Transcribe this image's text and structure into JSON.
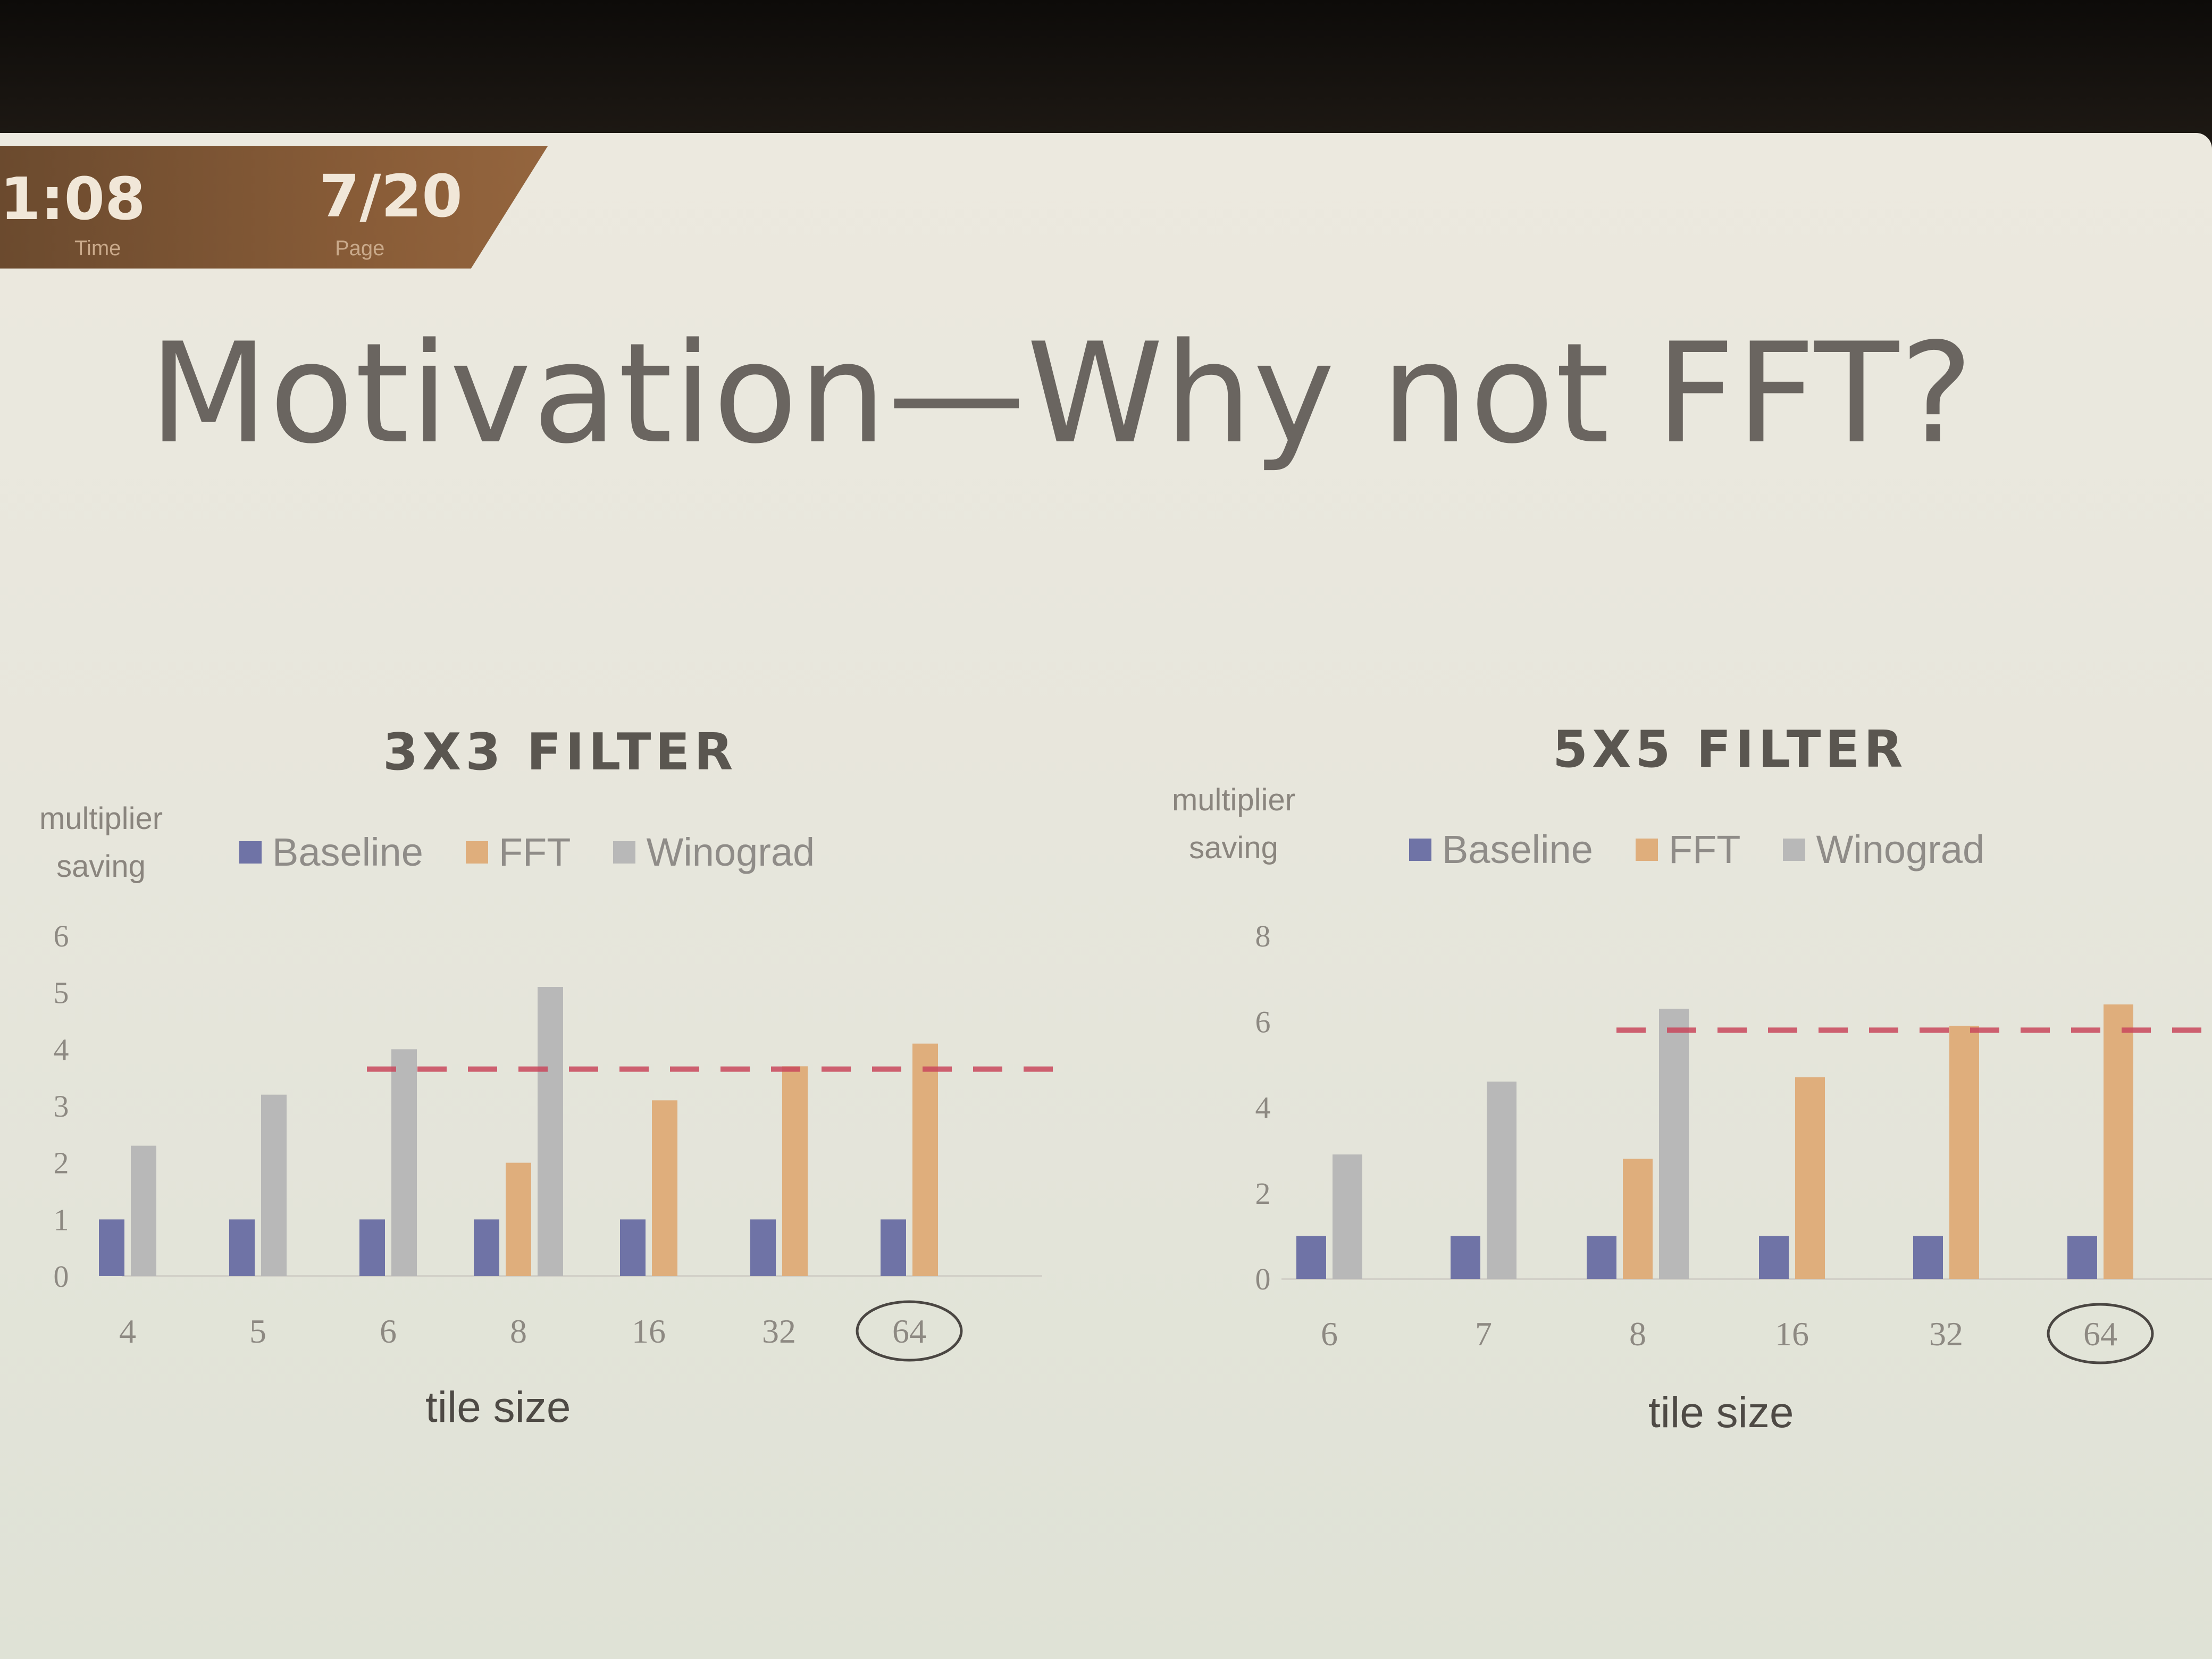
{
  "status": {
    "time": "1:08",
    "time_caption": "Time",
    "page": "7/20",
    "page_caption": "Page"
  },
  "slide_title": "Motivation—Why not FFT?",
  "colors": {
    "baseline": "#6f73a6",
    "fft": "#dfae7c",
    "winograd": "#b8b8b8",
    "threshold": "#c9485d"
  },
  "chart_data": [
    {
      "type": "bar",
      "title": "3X3 FILTER",
      "ylabel": "multiplier saving",
      "xlabel": "tile size",
      "categories": [
        "4",
        "5",
        "6",
        "8",
        "16",
        "32",
        "64"
      ],
      "circled_category": "64",
      "ylim": [
        0,
        6
      ],
      "yticks": [
        0,
        1,
        2,
        3,
        4,
        5,
        6
      ],
      "legend_position": "top",
      "grid": false,
      "series": [
        {
          "name": "Baseline",
          "values": [
            1,
            1,
            1,
            1,
            1,
            1,
            1
          ]
        },
        {
          "name": "FFT",
          "values": [
            null,
            null,
            null,
            2,
            3.1,
            3.7,
            4.1
          ]
        },
        {
          "name": "Winograd",
          "values": [
            2.3,
            3.2,
            4,
            5.1,
            null,
            null,
            null
          ]
        }
      ],
      "threshold_line": {
        "y": 3.65,
        "from_category": "6",
        "style": "dashed"
      }
    },
    {
      "type": "bar",
      "title": "5X5 FILTER",
      "ylabel": "multiplier saving",
      "xlabel": "tile size",
      "categories": [
        "6",
        "7",
        "8",
        "16",
        "32",
        "64"
      ],
      "circled_category": "64",
      "ylim": [
        0,
        8
      ],
      "yticks": [
        0,
        2,
        4,
        6,
        8
      ],
      "legend_position": "top",
      "grid": false,
      "series": [
        {
          "name": "Baseline",
          "values": [
            1,
            1,
            1,
            1,
            1,
            1
          ]
        },
        {
          "name": "FFT",
          "values": [
            null,
            null,
            2.8,
            4.7,
            5.9,
            6.4
          ]
        },
        {
          "name": "Winograd",
          "values": [
            2.9,
            4.6,
            6.3,
            null,
            null,
            null
          ]
        }
      ],
      "threshold_line": {
        "y": 5.8,
        "from_category": "8",
        "style": "dashed"
      }
    }
  ]
}
